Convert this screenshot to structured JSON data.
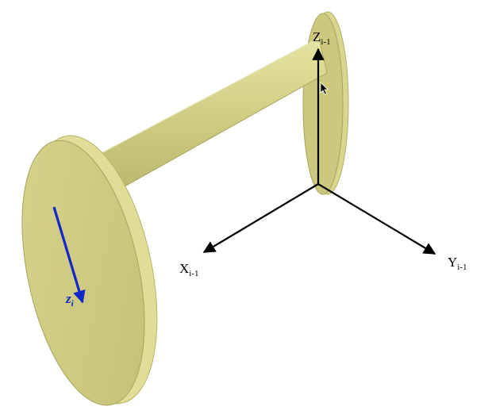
{
  "colors": {
    "link_face": "#cfcc7f",
    "link_side": "#e1df98",
    "link_edge": "#a8a45c",
    "axis": "#000000",
    "joint_axis": "#1326c8"
  },
  "labels": {
    "z_prev": {
      "main": "Z",
      "sub": "i-1"
    },
    "x_prev": {
      "main": "X",
      "sub": "i-1"
    },
    "y_prev": {
      "main": "Y",
      "sub": "i-1"
    },
    "z_i": {
      "main": "z",
      "sub": "i"
    }
  },
  "icons": {
    "cursor": "mouse-pointer-icon"
  }
}
